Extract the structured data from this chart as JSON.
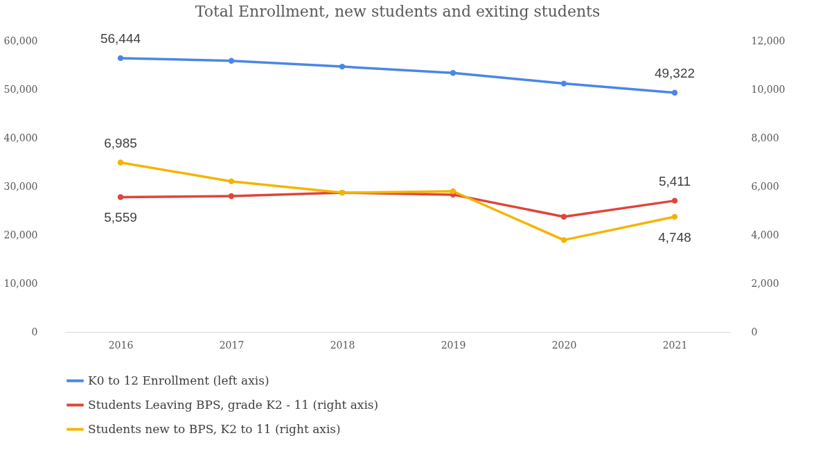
{
  "chart_data": {
    "type": "line",
    "title": "Total Enrollment, new students and exiting students",
    "categories": [
      "2016",
      "2017",
      "2018",
      "2019",
      "2020",
      "2021"
    ],
    "series": [
      {
        "name": "K0 to 12 Enrollment (left axis)",
        "color": "#4a86e8",
        "values": [
          56444,
          55900,
          54700,
          53400,
          51200,
          49322
        ],
        "value_labels": [
          "56,444",
          null,
          null,
          null,
          null,
          "49,322"
        ]
      },
      {
        "name": "Students Leaving BPS, grade K2 - 11 (right axis)",
        "color": "#e0443a",
        "axis": "y2",
        "values": [
          5559,
          5600,
          5740,
          5660,
          4750,
          5411
        ],
        "value_labels": [
          "5,559",
          null,
          null,
          null,
          null,
          "5,411"
        ]
      },
      {
        "name": "Students new to BPS, K2 to 11 (right axis)",
        "color": "#f5b400",
        "axis": "y2",
        "values": [
          6985,
          6210,
          5740,
          5800,
          3790,
          4748
        ],
        "value_labels": [
          "6,985",
          null,
          null,
          null,
          null,
          "4,748"
        ]
      }
    ],
    "ylim": [
      0,
      60000
    ],
    "yticks": [
      {
        "value": 0,
        "label": "0"
      },
      {
        "value": 10000,
        "label": "10,000"
      },
      {
        "value": 20000,
        "label": "20,000"
      },
      {
        "value": 30000,
        "label": "30,000"
      },
      {
        "value": 40000,
        "label": "40,000"
      },
      {
        "value": 50000,
        "label": "50,000"
      },
      {
        "value": 60000,
        "label": "60,000"
      }
    ],
    "y2lim": [
      0,
      12000
    ],
    "y2ticks": [
      {
        "value": 0,
        "label": "0"
      },
      {
        "value": 2000,
        "label": "2,000"
      },
      {
        "value": 4000,
        "label": "4,000"
      },
      {
        "value": 6000,
        "label": "6,000"
      },
      {
        "value": 8000,
        "label": "8,000"
      },
      {
        "value": 10000,
        "label": "10,000"
      },
      {
        "value": 12000,
        "label": "12,000"
      }
    ],
    "grid": false,
    "legend": "bottom",
    "marker": "circle",
    "line_style": "solid"
  }
}
